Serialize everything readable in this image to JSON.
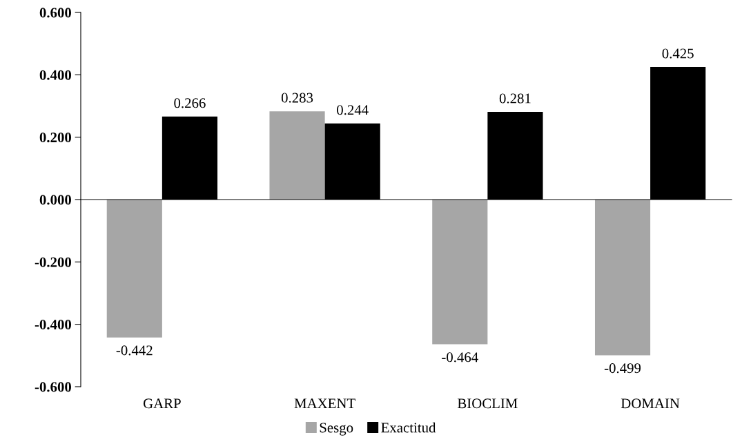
{
  "chart_data": {
    "type": "bar",
    "categories": [
      "GARP",
      "MAXENT",
      "BIOCLIM",
      "DOMAIN"
    ],
    "series": [
      {
        "name": "Sesgo",
        "color": "#a6a6a6",
        "values": [
          -0.442,
          0.283,
          -0.464,
          -0.499
        ]
      },
      {
        "name": "Exactitud",
        "color": "#000000",
        "values": [
          0.266,
          0.244,
          0.281,
          0.425
        ]
      }
    ],
    "ylim": [
      -0.6,
      0.6
    ],
    "yticks": [
      {
        "value": -0.6,
        "label": "-0.600"
      },
      {
        "value": -0.4,
        "label": "-0.400"
      },
      {
        "value": -0.2,
        "label": "-0.200"
      },
      {
        "value": 0,
        "label": "0.000"
      },
      {
        "value": 0.2,
        "label": "0.200"
      },
      {
        "value": 0.4,
        "label": "0.400"
      },
      {
        "value": 0.6,
        "label": "0.600"
      }
    ],
    "data_labels": true,
    "legend": "bottom"
  }
}
